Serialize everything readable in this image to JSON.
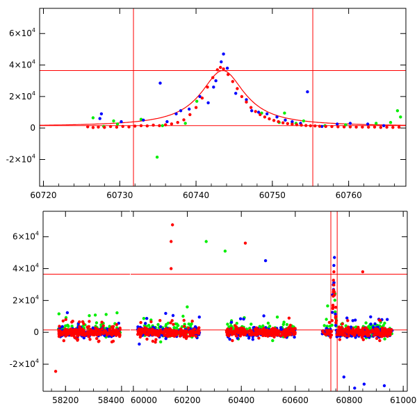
{
  "chart_data": [
    {
      "type": "scatter",
      "title": "",
      "xlabel": "",
      "ylabel": "",
      "xlim": [
        60719.5,
        60767.5
      ],
      "ylim": [
        -37000,
        76000
      ],
      "x_ticks": [
        60720,
        60730,
        60740,
        60750,
        60760
      ],
      "x_tick_labels": [
        "60720",
        "60730",
        "60740",
        "60750",
        "60760"
      ],
      "y_ticks": [
        -20000,
        0,
        20000,
        40000,
        60000
      ],
      "y_tick_labels": [
        {
          "m": "-2×10",
          "e": "4"
        },
        {
          "m": "0",
          "e": ""
        },
        {
          "m": "2×10",
          "e": "4"
        },
        {
          "m": "4×10",
          "e": "4"
        },
        {
          "m": "6×10",
          "e": "4"
        }
      ],
      "reference_lines": {
        "vertical": [
          60731.8,
          60755.3
        ],
        "horizontal": [
          1500,
          36500
        ]
      },
      "series": [
        {
          "name": "red",
          "color": "#ff0000",
          "points": [
            [
              60725.8,
              800
            ],
            [
              60726.5,
              300
            ],
            [
              60727.2,
              600
            ],
            [
              60728,
              400
            ],
            [
              60728.8,
              900
            ],
            [
              60729.6,
              500
            ],
            [
              60730.4,
              1000
            ],
            [
              60731.2,
              700
            ],
            [
              60732,
              1200
            ],
            [
              60732.8,
              1500
            ],
            [
              60733.6,
              1300
            ],
            [
              60734.4,
              1800
            ],
            [
              60735.2,
              1500
            ],
            [
              60736,
              2000
            ],
            [
              60736.8,
              2600
            ],
            [
              60737.6,
              3500
            ],
            [
              60738.4,
              5200
            ],
            [
              60739.2,
              8500
            ],
            [
              60740,
              13000
            ],
            [
              60740.8,
              19000
            ],
            [
              60741.5,
              26000
            ],
            [
              60742.2,
              32000
            ],
            [
              60742.8,
              37000
            ],
            [
              60743.2,
              38500
            ],
            [
              60743.6,
              37500
            ],
            [
              60744.2,
              34000
            ],
            [
              60744.8,
              29500
            ],
            [
              60745.4,
              25000
            ],
            [
              60746,
              20000
            ],
            [
              60746.6,
              16500
            ],
            [
              60747.2,
              13000
            ],
            [
              60747.8,
              10500
            ],
            [
              60748.4,
              8500
            ],
            [
              60749,
              7000
            ],
            [
              60749.6,
              5800
            ],
            [
              60750.2,
              4800
            ],
            [
              60750.8,
              4000
            ],
            [
              60751.4,
              3300
            ],
            [
              60752,
              2800
            ],
            [
              60752.6,
              2400
            ],
            [
              60753.2,
              2100
            ],
            [
              60753.8,
              1800
            ],
            [
              60754.4,
              1600
            ],
            [
              60755,
              1400
            ],
            [
              60755.6,
              1300
            ],
            [
              60756.2,
              1100
            ],
            [
              60757,
              1000
            ],
            [
              60757.8,
              900
            ],
            [
              60758.6,
              800
            ],
            [
              60759.4,
              700
            ],
            [
              60760.2,
              700
            ],
            [
              60761,
              600
            ],
            [
              60761.8,
              600
            ],
            [
              60762.6,
              500
            ],
            [
              60763.4,
              600
            ],
            [
              60764.2,
              400
            ],
            [
              60765,
              500
            ],
            [
              60765.8,
              400
            ],
            [
              60766.6,
              500
            ]
          ]
        },
        {
          "name": "blue",
          "color": "#0000ff",
          "points": [
            [
              60727.6,
              9000
            ],
            [
              60727.4,
              6000
            ],
            [
              60730.2,
              4000
            ],
            [
              60733.1,
              5000
            ],
            [
              60735.3,
              28500
            ],
            [
              60736.2,
              4000
            ],
            [
              60737.4,
              9000
            ],
            [
              60738,
              11000
            ],
            [
              60739.1,
              12000
            ],
            [
              60740.5,
              20000
            ],
            [
              60741.6,
              16000
            ],
            [
              60742.3,
              26000
            ],
            [
              60742.6,
              30000
            ],
            [
              60743.3,
              42000
            ],
            [
              60743.6,
              47000
            ],
            [
              60744.1,
              38000
            ],
            [
              60745.2,
              22000
            ],
            [
              60746.6,
              18000
            ],
            [
              60747.3,
              11000
            ],
            [
              60748.2,
              10000
            ],
            [
              60749.3,
              9000
            ],
            [
              60750.6,
              7000
            ],
            [
              60751.7,
              5000
            ],
            [
              60752.6,
              4000
            ],
            [
              60753.7,
              3000
            ],
            [
              60754.6,
              23000
            ],
            [
              60756.5,
              1000
            ],
            [
              60758.5,
              2500
            ],
            [
              60760.2,
              3000
            ],
            [
              60762.5,
              2500
            ],
            [
              60764.6,
              1500
            ]
          ]
        },
        {
          "name": "green",
          "color": "#00ee00",
          "points": [
            [
              60726.5,
              6500
            ],
            [
              60727.9,
              1000
            ],
            [
              60729.2,
              4500
            ],
            [
              60729.7,
              2500
            ],
            [
              60732.8,
              5500
            ],
            [
              60734.9,
              -18500
            ],
            [
              60735.6,
              1500
            ],
            [
              60738.6,
              3000
            ],
            [
              60740.1,
              17000
            ],
            [
              60748.6,
              9500
            ],
            [
              60750.9,
              3500
            ],
            [
              60751.6,
              9500
            ],
            [
              60752.6,
              3000
            ],
            [
              60753.1,
              3000
            ],
            [
              60754.1,
              4500
            ],
            [
              60756.9,
              1500
            ],
            [
              60759.6,
              2000
            ],
            [
              60763.6,
              3000
            ],
            [
              60765.5,
              3500
            ],
            [
              60766.4,
              11000
            ],
            [
              60766.8,
              7000
            ]
          ]
        }
      ],
      "model_curve": {
        "name": "model",
        "color": "#ff0000",
        "peak_time": 60743.5,
        "peak_value": 36500,
        "baseline": 1000,
        "width": 3.5
      }
    },
    {
      "type": "scatter",
      "title": "",
      "xlabel": "",
      "ylabel": "",
      "segments": [
        {
          "xlim": [
            58120,
            58430
          ],
          "x_ticks": [
            58200,
            58400
          ],
          "x_tick_labels": [
            "58200",
            "58400"
          ]
        },
        {
          "xlim": [
            59990,
            61015
          ],
          "x_ticks": [
            60000,
            60200,
            60400,
            60600,
            60800,
            61000
          ],
          "x_tick_labels": [
            "60000",
            "60200",
            "60400",
            "60600",
            "60800",
            "61000"
          ]
        }
      ],
      "ylim": [
        -37000,
        76000
      ],
      "y_ticks": [
        -20000,
        0,
        20000,
        40000,
        60000
      ],
      "y_tick_labels": [
        {
          "m": "-2×10",
          "e": "4"
        },
        {
          "m": "0",
          "e": ""
        },
        {
          "m": "2×10",
          "e": "4"
        },
        {
          "m": "4×10",
          "e": "4"
        },
        {
          "m": "6×10",
          "e": "4"
        }
      ],
      "reference_lines": {
        "vertical": [
          60731.8,
          60755.3
        ],
        "horizontal": [
          1500,
          36500
        ]
      },
      "seasons": [
        [
          58175,
          58395,
          0
        ],
        [
          60015,
          60245,
          1
        ],
        [
          60345,
          60600,
          2
        ],
        [
          60700,
          60960,
          3
        ]
      ],
      "highlights": [
        {
          "x": 60270,
          "y": 57000,
          "color": "#00ee00"
        },
        {
          "x": 60340,
          "y": 51000,
          "color": "#00ee00"
        },
        {
          "x": 60145,
          "y": 67500,
          "color": "#ff0000"
        },
        {
          "x": 60140,
          "y": 57000,
          "color": "#ff0000"
        },
        {
          "x": 60140,
          "y": 40000,
          "color": "#ff0000"
        },
        {
          "x": 60415,
          "y": 56000,
          "color": "#ff0000"
        },
        {
          "x": 60743,
          "y": 42000,
          "color": "#0000ff"
        },
        {
          "x": 60745,
          "y": 47000,
          "color": "#0000ff"
        },
        {
          "x": 60743,
          "y": 38000,
          "color": "#ff0000"
        },
        {
          "x": 60850,
          "y": 38000,
          "color": "#ff0000"
        },
        {
          "x": 60490,
          "y": 45000,
          "color": "#0000ff"
        },
        {
          "x": 58165,
          "y": -24500,
          "color": "#ff0000"
        },
        {
          "x": 60820,
          "y": -35000,
          "color": "#0000ff"
        },
        {
          "x": 60855,
          "y": -32500,
          "color": "#0000ff"
        },
        {
          "x": 60930,
          "y": -33500,
          "color": "#0000ff"
        },
        {
          "x": 60780,
          "y": -28000,
          "color": "#0000ff"
        }
      ]
    }
  ]
}
